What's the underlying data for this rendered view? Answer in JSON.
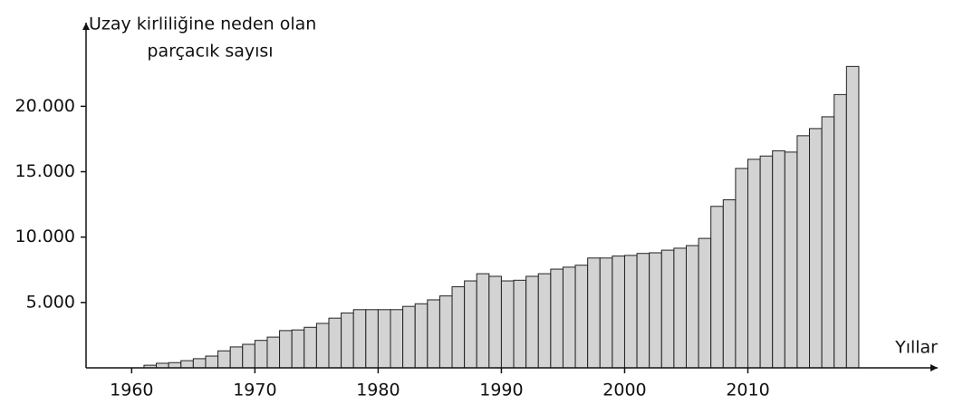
{
  "chart_data": {
    "type": "bar",
    "ylabel": [
      "Uzay kirliliğine neden olan",
      "parçacık sayısı"
    ],
    "xlabel": "Yıllar",
    "x": [
      1961,
      1962,
      1963,
      1964,
      1965,
      1966,
      1967,
      1968,
      1969,
      1970,
      1971,
      1972,
      1973,
      1974,
      1975,
      1976,
      1977,
      1978,
      1979,
      1980,
      1981,
      1982,
      1983,
      1984,
      1985,
      1986,
      1987,
      1988,
      1989,
      1990,
      1991,
      1992,
      1993,
      1994,
      1995,
      1996,
      1997,
      1998,
      1999,
      2000,
      2001,
      2002,
      2003,
      2004,
      2005,
      2006,
      2007,
      2008,
      2009,
      2010,
      2011,
      2012,
      2013,
      2014,
      2015,
      2016,
      2017,
      2018
    ],
    "values": [
      200,
      350,
      400,
      550,
      700,
      900,
      1300,
      1600,
      1800,
      2100,
      2350,
      2850,
      2900,
      3100,
      3400,
      3800,
      4200,
      4450,
      4450,
      4450,
      4450,
      4700,
      4900,
      5200,
      5500,
      6200,
      6650,
      7200,
      7000,
      6650,
      6700,
      7000,
      7200,
      7550,
      7700,
      7850,
      8400,
      8400,
      8550,
      8600,
      8750,
      8800,
      9000,
      9150,
      9350,
      9900,
      12350,
      12850,
      15250,
      15950,
      16200,
      16600,
      16500,
      17750,
      18300,
      19200,
      20900,
      23050
    ],
    "color": "#d3d3d3",
    "xlim": [
      1956.3,
      2025.4
    ],
    "xticks": [
      1960,
      1970,
      1980,
      1990,
      2000,
      2010
    ],
    "ylim": [
      0,
      26400
    ],
    "yticks": [
      {
        "value": 5000,
        "label": "5.000"
      },
      {
        "value": 10000,
        "label": "10.000"
      },
      {
        "value": 15000,
        "label": "15.000"
      },
      {
        "value": 20000,
        "label": "20.000"
      }
    ]
  }
}
